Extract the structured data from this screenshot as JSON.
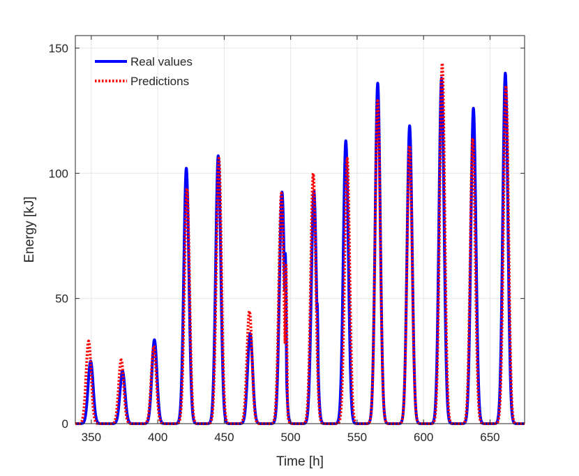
{
  "chart_data": {
    "type": "line",
    "title": "",
    "xlabel": "Time [h]",
    "ylabel": "Energy [kJ]",
    "xlim": [
      338,
      676
    ],
    "ylim": [
      0,
      155
    ],
    "xticks": [
      350,
      400,
      450,
      500,
      550,
      600,
      650
    ],
    "yticks": [
      0,
      50,
      100,
      150
    ],
    "grid": true,
    "legend_position": "top-left",
    "colors": {
      "real": "#0000ff",
      "pred": "#ff0000",
      "grid": "#e6e6e6",
      "axis": "#262626"
    },
    "series": [
      {
        "name": "Real values",
        "style": "solid",
        "peaks": [
          {
            "t": 349.5,
            "v": 25
          },
          {
            "t": 373.5,
            "v": 21
          },
          {
            "t": 397.5,
            "v": 33.5
          },
          {
            "t": 421.5,
            "v": 102
          },
          {
            "t": 445.5,
            "v": 107
          },
          {
            "t": 469.5,
            "v": 36
          },
          {
            "t": 493.5,
            "v": 92.5
          },
          {
            "t": 517.5,
            "v": 93
          },
          {
            "t": 541.5,
            "v": 113
          },
          {
            "t": 565.5,
            "v": 136
          },
          {
            "t": 589.5,
            "v": 119
          },
          {
            "t": 613.5,
            "v": 138
          },
          {
            "t": 637.5,
            "v": 126
          },
          {
            "t": 661.5,
            "v": 140
          }
        ],
        "bumps": [
          {
            "t": 496.0,
            "v": 68
          },
          {
            "t": 520.0,
            "v": 48
          }
        ]
      },
      {
        "name": "Predictions",
        "style": "dotted",
        "peaks": [
          {
            "t": 348.0,
            "v": 33
          },
          {
            "t": 372.5,
            "v": 25.5
          },
          {
            "t": 397.0,
            "v": 31
          },
          {
            "t": 422.0,
            "v": 94
          },
          {
            "t": 446.0,
            "v": 106
          },
          {
            "t": 469.0,
            "v": 45
          },
          {
            "t": 493.0,
            "v": 92
          },
          {
            "t": 517.0,
            "v": 100
          },
          {
            "t": 542.5,
            "v": 106
          },
          {
            "t": 565.5,
            "v": 129
          },
          {
            "t": 589.5,
            "v": 111
          },
          {
            "t": 614.0,
            "v": 144
          },
          {
            "t": 637.0,
            "v": 114
          },
          {
            "t": 662.0,
            "v": 135
          }
        ],
        "bumps": [
          {
            "t": 495.5,
            "v": 22
          },
          {
            "t": 519.5,
            "v": 22
          },
          {
            "t": 496.5,
            "v": 64
          }
        ]
      }
    ]
  }
}
